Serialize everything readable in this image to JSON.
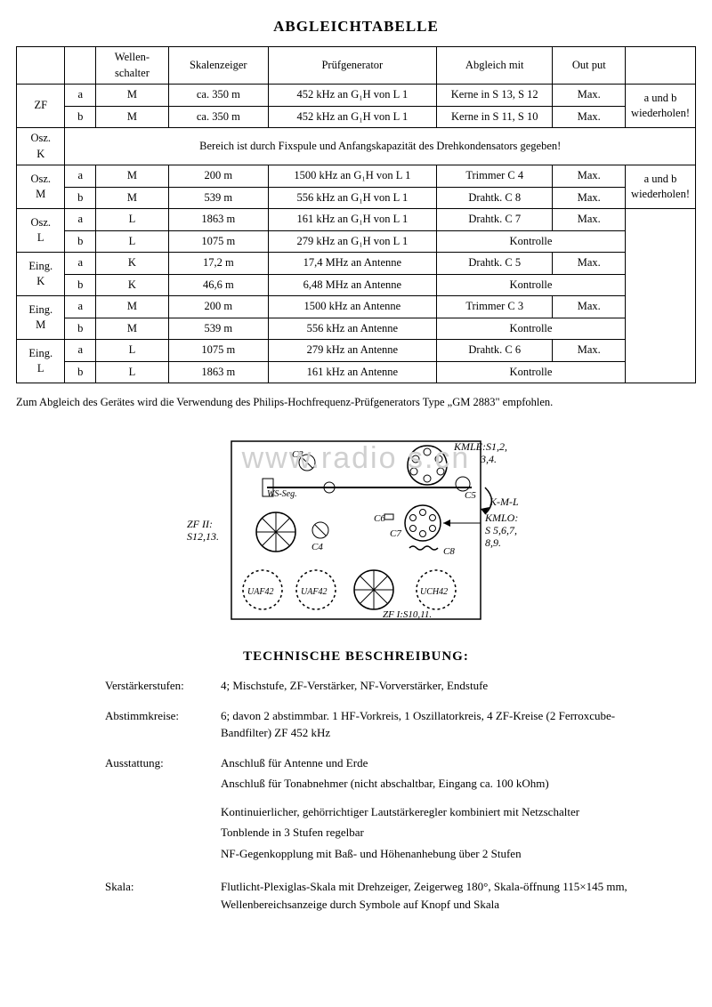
{
  "title": "ABGLEICHTABELLE",
  "headers": {
    "c1": "",
    "c2": "",
    "c3": "Wellen-\nschalter",
    "c4": "Skalenzeiger",
    "c5": "Prüfgenerator",
    "c6": "Abgleich mit",
    "c7": "Out put",
    "c8": ""
  },
  "rows": [
    {
      "g": "ZF",
      "s": "a",
      "ws": "M",
      "sz": "ca. 350 m",
      "pg": "452 kHz an G₁H von L 1",
      "am": "Kerne in S 13, S 12",
      "out": "Max."
    },
    {
      "g": "",
      "s": "b",
      "ws": "M",
      "sz": "ca. 350 m",
      "pg": "452 kHz an G₁H von L 1",
      "am": "Kerne in S 11, S 10",
      "out": "Max."
    }
  ],
  "zf_note": "a und b\nwiederholen!",
  "osz_k_label": "Osz.\nK",
  "osz_k_text": "Bereich ist durch Fixspule und Anfangskapazität des Drehkondensators gegeben!",
  "rows2": [
    {
      "g": "Osz.\nM",
      "s": "a",
      "ws": "M",
      "sz": "200 m",
      "pg": "1500 kHz an G₁H von L 1",
      "am": "Trimmer C 4",
      "out": "Max."
    },
    {
      "g": "",
      "s": "b",
      "ws": "M",
      "sz": "539 m",
      "pg": "556 kHz an G₁H von L 1",
      "am": "Drahtk. C 8",
      "out": "Max."
    }
  ],
  "oszm_note": "a und b\nwiederholen!",
  "rows3": [
    {
      "g": "Osz.\nL",
      "s": "a",
      "ws": "L",
      "sz": "1863 m",
      "pg": "161 kHz an G₁H von L 1",
      "am": "Drahtk. C 7",
      "out": "Max."
    },
    {
      "g": "",
      "s": "b",
      "ws": "L",
      "sz": "1075 m",
      "pg": "279 kHz an G₁H von L 1",
      "am": "Kontrolle",
      "out": ""
    },
    {
      "g": "Eing.\nK",
      "s": "a",
      "ws": "K",
      "sz": "17,2 m",
      "pg": "17,4 MHz an Antenne",
      "am": "Drahtk. C 5",
      "out": "Max."
    },
    {
      "g": "",
      "s": "b",
      "ws": "K",
      "sz": "46,6 m",
      "pg": "6,48 MHz an Antenne",
      "am": "Kontrolle",
      "out": ""
    },
    {
      "g": "Eing.\nM",
      "s": "a",
      "ws": "M",
      "sz": "200 m",
      "pg": "1500 kHz an Antenne",
      "am": "Trimmer C 3",
      "out": "Max."
    },
    {
      "g": "",
      "s": "b",
      "ws": "M",
      "sz": "539 m",
      "pg": "556 kHz an Antenne",
      "am": "Kontrolle",
      "out": ""
    },
    {
      "g": "Eing.\nL",
      "s": "a",
      "ws": "L",
      "sz": "1075 m",
      "pg": "279 kHz an Antenne",
      "am": "Drahtk. C 6",
      "out": "Max."
    },
    {
      "g": "",
      "s": "b",
      "ws": "L",
      "sz": "1863 m",
      "pg": "161 kHz an Antenne",
      "am": "Kontrolle",
      "out": ""
    }
  ],
  "footnote": "Zum Abgleich des Gerätes wird die Verwendung des Philips-Hochfrequenz-Prüfgenerators Type „GM 2883\" empfohlen.",
  "watermark": "www.radio   s.cn",
  "diagram": {
    "labels": {
      "kmle": "KMLE:S1,2,\n3,4.",
      "kml": "K-M-L",
      "kmlo": "KMLO:\nS 5,6,7,\n8,9.",
      "zf2": "ZF II:\nS12,13.",
      "zf1": "ZF I:S10,11.",
      "c3": "C3",
      "c4": "C4",
      "c5": "C5",
      "c6": "C6",
      "c7": "C7",
      "c8": "C8",
      "ws": "WS-Seg.",
      "uaf1": "UAF42",
      "uaf2": "UAF42",
      "uch": "UCH42"
    }
  },
  "sub_title": "TECHNISCHE BESCHREIBUNG:",
  "desc": {
    "verstaerker": {
      "label": "Verstärkerstufen:",
      "val": "4; Mischstufe, ZF-Verstärker, NF-Vorverstärker, Endstufe"
    },
    "abstimm": {
      "label": "Abstimmkreise:",
      "val": "6; davon 2 abstimmbar. 1 HF-Vorkreis, 1 Oszillatorkreis, 4 ZF-Kreise (2 Ferroxcube-Bandfilter) ZF 452 kHz"
    },
    "ausstattung": {
      "label": "Ausstattung:",
      "p1": "Anschluß für Antenne und Erde",
      "p2": "Anschluß für Tonabnehmer (nicht abschaltbar, Eingang ca. 100 kOhm)",
      "p3": "Kontinuierlicher, gehörrichtiger Lautstärkeregler kombiniert mit Netzschalter",
      "p4": "Tonblende in 3 Stufen regelbar",
      "p5": "NF-Gegenkopplung mit Baß- und Höhenanhebung über 2 Stufen"
    },
    "skala": {
      "label": "Skala:",
      "val": "Flutlicht-Plexiglas-Skala mit Drehzeiger, Zeigerweg 180°, Skala-öffnung 115×145 mm, Wellenbereichsanzeige durch Symbole auf Knopf und Skala"
    }
  }
}
